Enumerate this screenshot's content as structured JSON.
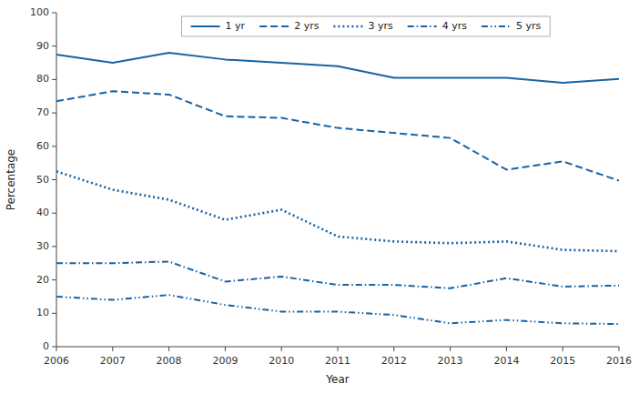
{
  "chart_data": {
    "type": "line",
    "x_label": "Year",
    "y_label": "Percentage",
    "x": [
      2006,
      2007,
      2008,
      2009,
      2010,
      2011,
      2012,
      2013,
      2014,
      2015,
      2016
    ],
    "series": [
      {
        "name": "1 yr",
        "color": "#1763A6",
        "line_style": "solid",
        "values": [
          87.5,
          85.0,
          88.0,
          86.0,
          85.0,
          84.0,
          80.5,
          80.5,
          80.5,
          79.0,
          80.2
        ]
      },
      {
        "name": "2 yrs",
        "color": "#1763A6",
        "line_style": "dashed",
        "values": [
          73.5,
          76.5,
          75.5,
          69.0,
          68.5,
          65.5,
          64.0,
          62.5,
          53.0,
          55.5,
          49.7
        ]
      },
      {
        "name": "3 yrs",
        "color": "#1763A6",
        "line_style": "dotted",
        "values": [
          52.5,
          47.0,
          44.0,
          38.0,
          41.0,
          33.0,
          31.5,
          31.0,
          31.5,
          29.0,
          28.6
        ]
      },
      {
        "name": "4 yrs",
        "color": "#1763A6",
        "line_style": "dashdot",
        "values": [
          25.0,
          25.0,
          25.5,
          19.5,
          21.0,
          18.5,
          18.5,
          17.5,
          20.5,
          18.0,
          18.3
        ]
      },
      {
        "name": "5 yrs",
        "color": "#1763A6",
        "line_style": "dashdotdot",
        "values": [
          15.0,
          14.0,
          15.5,
          12.5,
          10.5,
          10.5,
          9.5,
          7.0,
          8.0,
          7.0,
          6.8
        ]
      }
    ],
    "xlim": [
      2006,
      2016
    ],
    "xticks": [
      2006,
      2007,
      2008,
      2009,
      2010,
      2011,
      2012,
      2013,
      2014,
      2015,
      2016
    ],
    "ylim": [
      0,
      100
    ],
    "yticks": [
      0,
      10,
      20,
      30,
      40,
      50,
      60,
      70,
      80,
      90,
      100
    ],
    "grid": false,
    "legend": "top"
  }
}
